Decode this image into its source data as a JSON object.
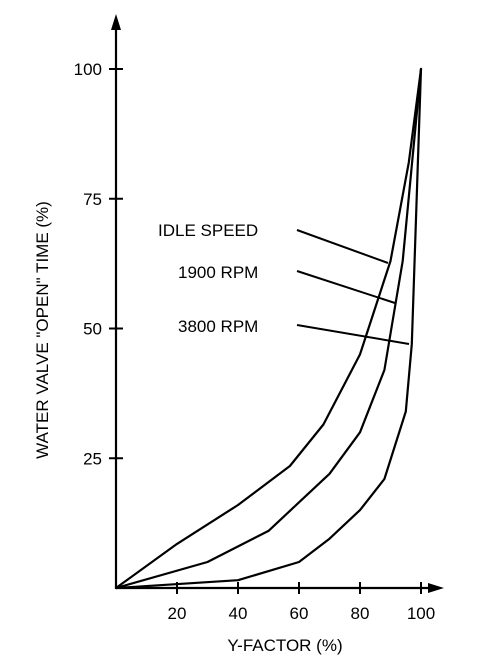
{
  "chart_data": {
    "type": "line",
    "xlabel": "Y-FACTOR (%)",
    "ylabel": "WATER VALVE \"OPEN\" TIME (%)",
    "xlim": [
      0,
      105
    ],
    "ylim": [
      0,
      100
    ],
    "x_ticks": [
      "20",
      "40",
      "60",
      "80",
      "100"
    ],
    "x_tick_values": [
      20,
      40,
      60,
      80,
      100
    ],
    "y_ticks": [
      "25",
      "50",
      "75",
      "100"
    ],
    "y_tick_values": [
      25,
      50,
      75,
      100
    ],
    "grid": false,
    "series": [
      {
        "name": "IDLE SPEED",
        "x": [
          0,
          20,
          40,
          57,
          68,
          80,
          90,
          96,
          100
        ],
        "y": [
          0,
          8.5,
          16,
          23.5,
          31.5,
          45,
          63,
          82,
          100
        ]
      },
      {
        "name": "1900 RPM",
        "x": [
          0,
          30,
          50,
          70,
          80,
          88,
          94,
          100
        ],
        "y": [
          0,
          5,
          11,
          22,
          30,
          42,
          63,
          100
        ]
      },
      {
        "name": "3800 RPM",
        "x": [
          0,
          40,
          60,
          70,
          80,
          88,
          95,
          97,
          100
        ],
        "y": [
          0,
          1.5,
          5,
          9.5,
          15,
          21,
          34,
          47,
          100
        ]
      }
    ]
  }
}
